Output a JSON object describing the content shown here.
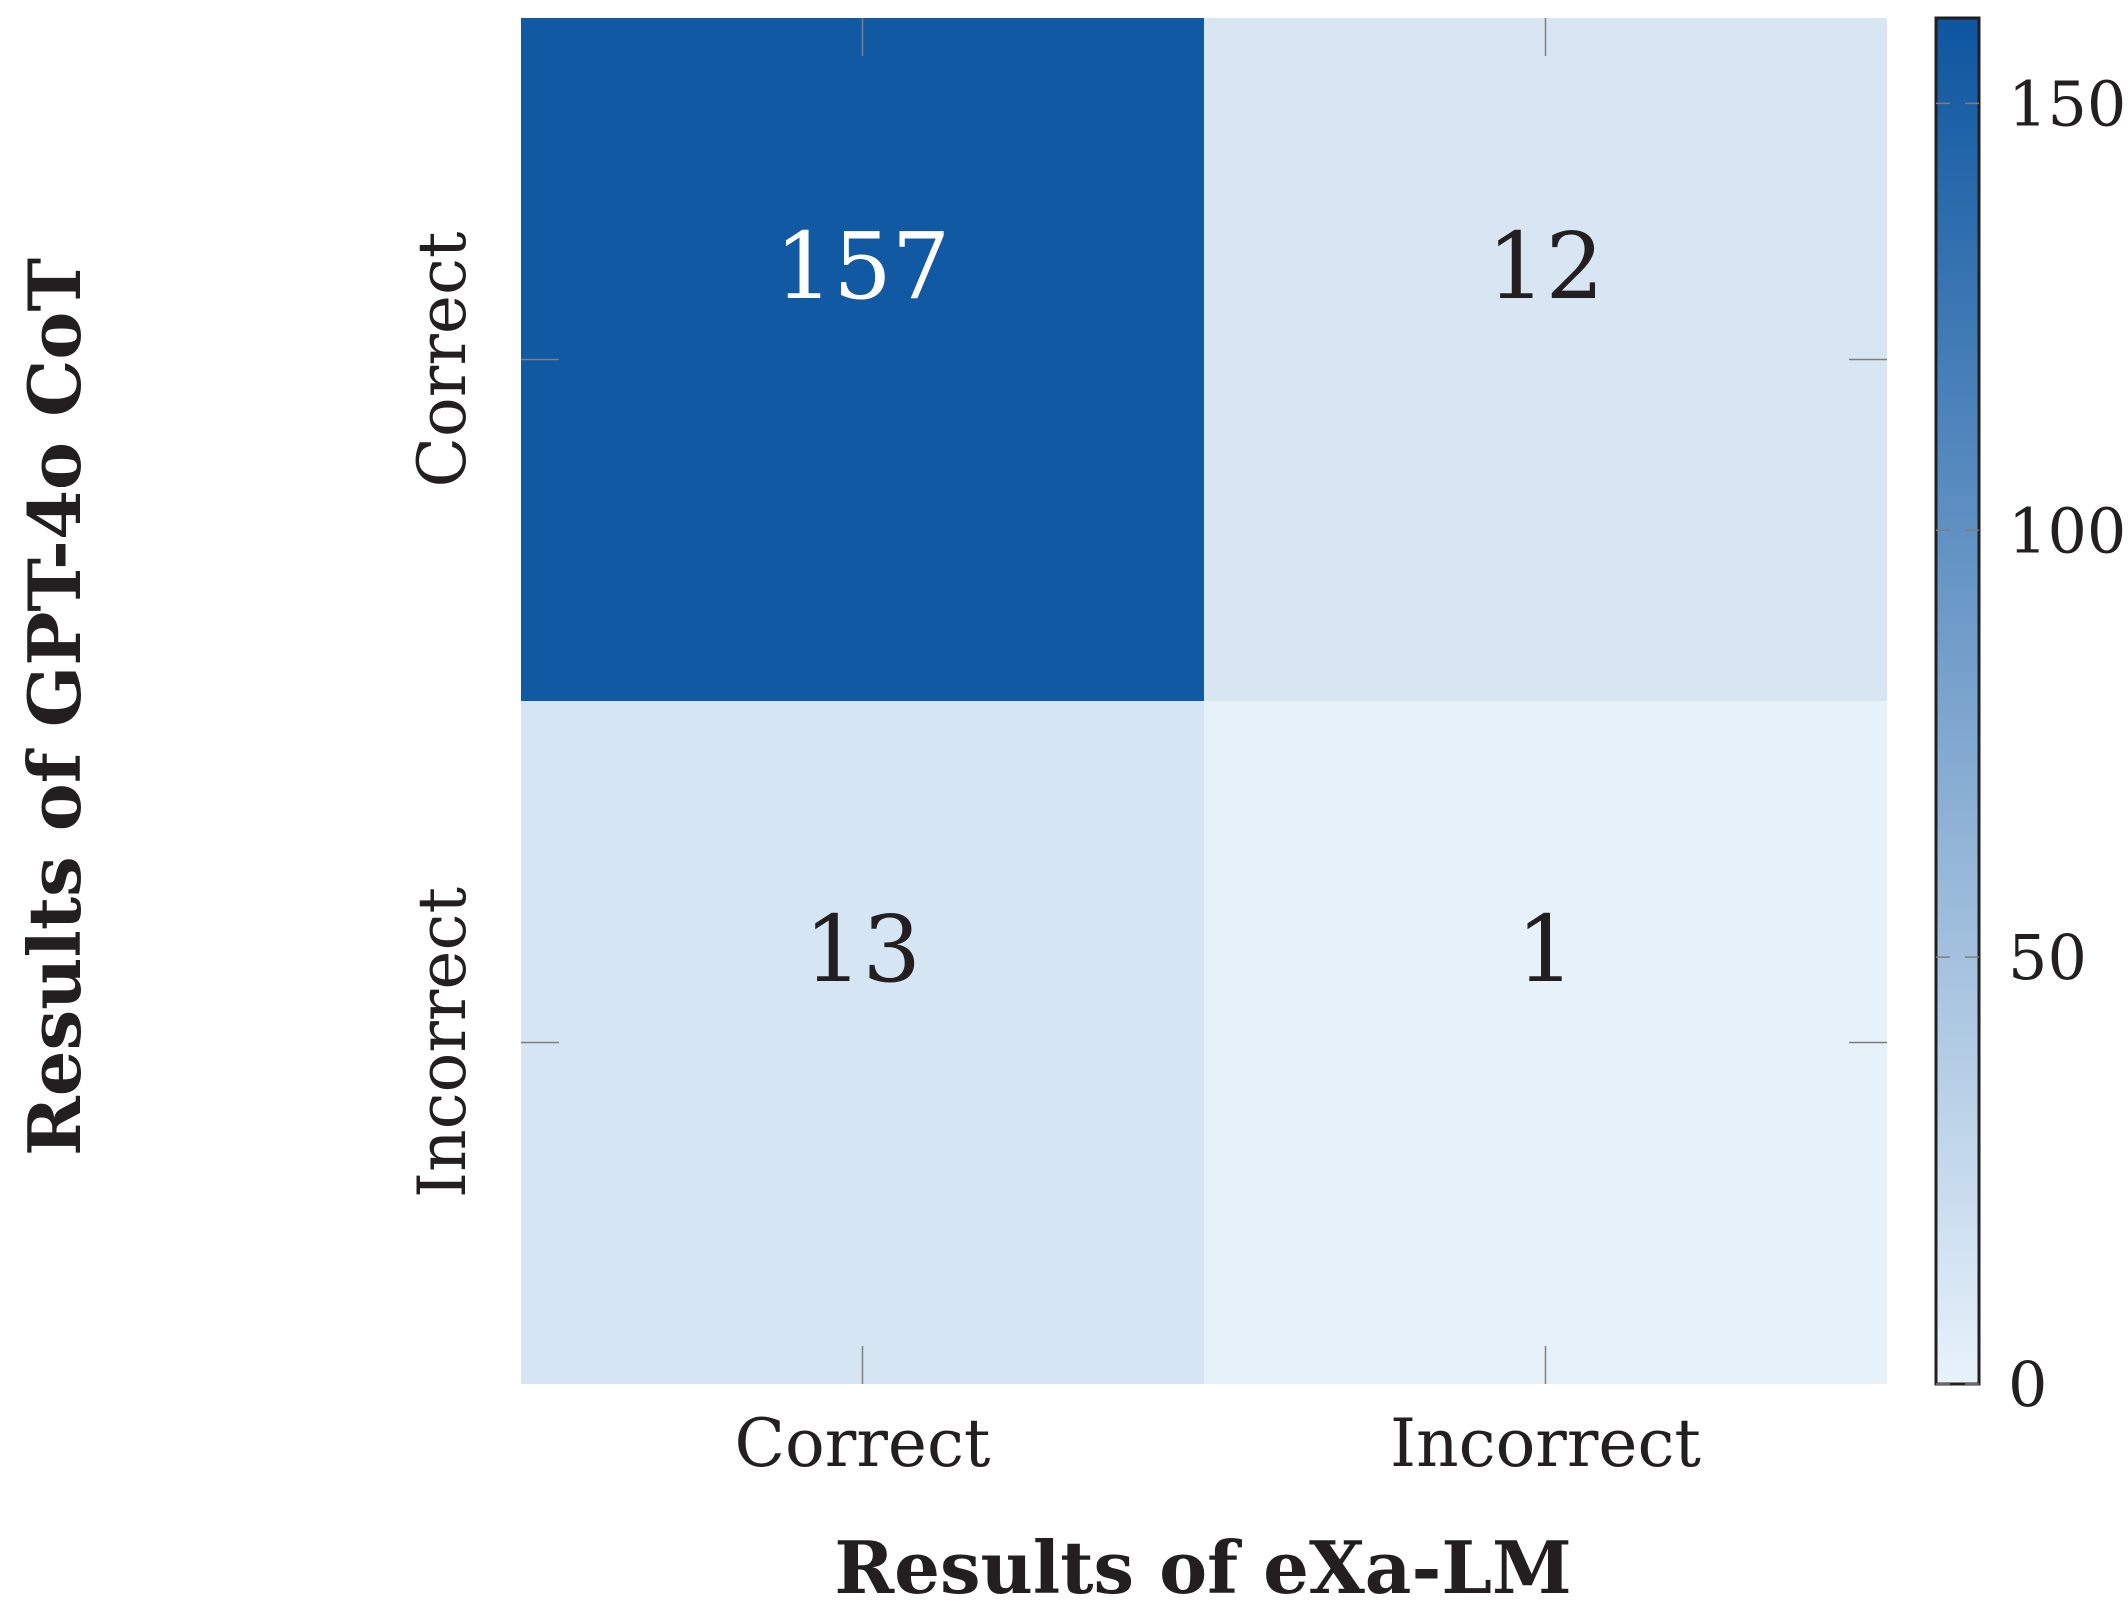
{
  "chart_data": {
    "type": "heatmap",
    "title": "",
    "xlabel": "Results of eXa-LM",
    "ylabel": "Results of GPT-4o CoT",
    "x_categories": [
      "Correct",
      "Incorrect"
    ],
    "y_categories": [
      "Correct",
      "Incorrect"
    ],
    "values": [
      [
        157,
        12
      ],
      [
        13,
        1
      ]
    ],
    "colorbar": {
      "ticks": [
        "0",
        "50",
        "100",
        "150"
      ],
      "range": [
        0,
        160
      ],
      "colormap": "Blues",
      "color_low": "#e8f2fb",
      "color_high": "#0d56a0"
    },
    "text_colors": {
      "dark": "#231f20",
      "light": "#ffffff"
    }
  }
}
